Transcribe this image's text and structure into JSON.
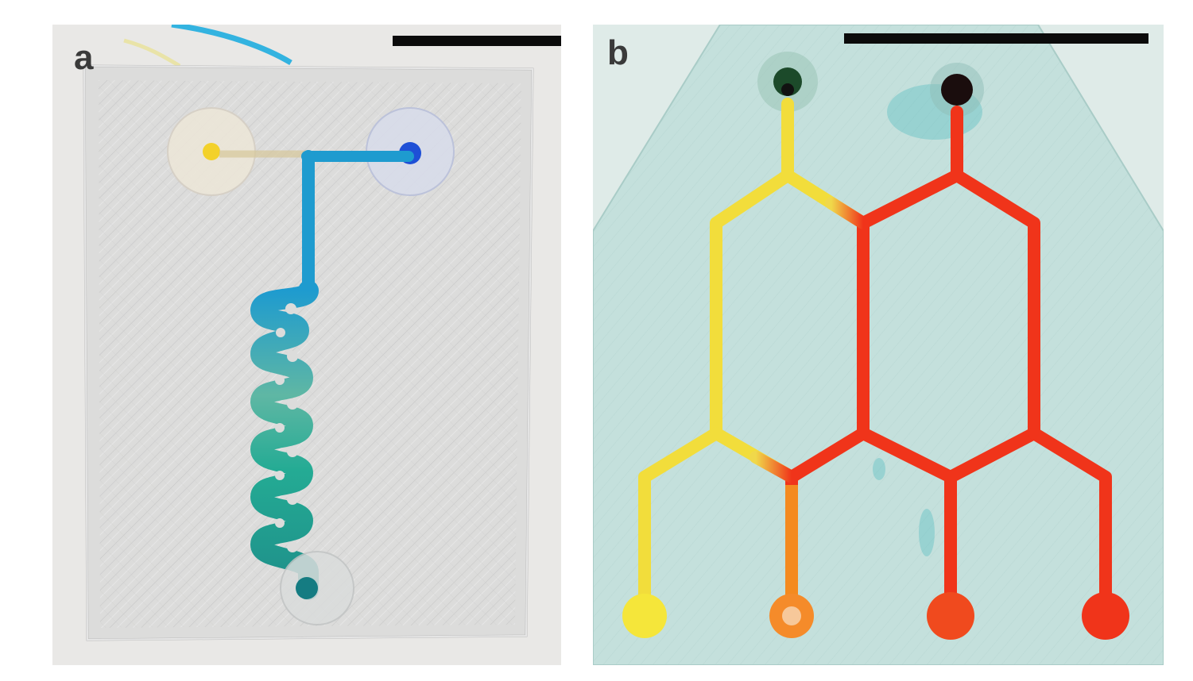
{
  "figure": {
    "panels": [
      {
        "id": "a",
        "label": "a"
      },
      {
        "id": "b",
        "label": "b"
      }
    ]
  },
  "colors": {
    "background_a": "#e9e8e6",
    "chip_a": "#dcdcdb",
    "channel_blue": "#1e9bcf",
    "channel_teal": "#1faa8f",
    "dye_yellow": "#f3d12a",
    "dye_blue": "#1e4fd6",
    "background_b": "#cfe3e0",
    "chip_b": "#bfdedb",
    "channel_yellow": "#f0e24a",
    "channel_red": "#f0341a",
    "channel_orange": "#f48a1f"
  }
}
